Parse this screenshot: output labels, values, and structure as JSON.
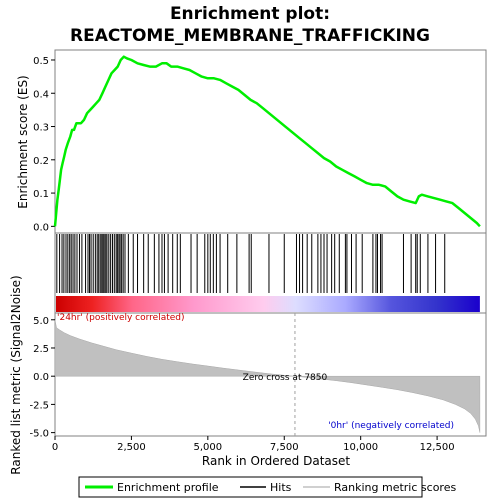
{
  "chart_data": [
    {
      "type": "line",
      "title_line1": "Enrichment plot:",
      "title_line2": "REACTOME_MEMBRANE_TRAFFICKING",
      "ylabel": "Enrichment score (ES)",
      "ylim": [
        -0.02,
        0.53
      ],
      "yticks": [
        "0.0",
        "0.1",
        "0.2",
        "0.3",
        "0.4",
        "0.5"
      ],
      "ytick_values": [
        0.0,
        0.1,
        0.2,
        0.3,
        0.4,
        0.5
      ],
      "xlim": [
        0,
        14100
      ],
      "series": [
        {
          "name": "Enrichment profile",
          "color": "#00ee00",
          "x": [
            0,
            40,
            80,
            120,
            160,
            200,
            250,
            300,
            350,
            420,
            500,
            560,
            620,
            700,
            780,
            850,
            950,
            1050,
            1150,
            1250,
            1350,
            1450,
            1550,
            1650,
            1750,
            1850,
            1950,
            2050,
            2150,
            2250,
            2350,
            2500,
            2700,
            2900,
            3100,
            3300,
            3500,
            3650,
            3800,
            4000,
            4200,
            4400,
            4600,
            4800,
            5000,
            5200,
            5400,
            5600,
            5800,
            6000,
            6200,
            6400,
            6600,
            6800,
            7000,
            7200,
            7400,
            7600,
            7800,
            8000,
            8200,
            8400,
            8600,
            8800,
            9000,
            9200,
            9400,
            9600,
            9800,
            10000,
            10200,
            10400,
            10600,
            10800,
            11000,
            11200,
            11400,
            11600,
            11800,
            11900,
            12000,
            12200,
            12400,
            12600,
            12800,
            13000,
            13200,
            13400,
            13600,
            13800,
            13900
          ],
          "y": [
            0.0,
            0.04,
            0.08,
            0.11,
            0.14,
            0.17,
            0.19,
            0.21,
            0.23,
            0.25,
            0.27,
            0.29,
            0.29,
            0.31,
            0.31,
            0.31,
            0.32,
            0.34,
            0.35,
            0.36,
            0.37,
            0.38,
            0.4,
            0.42,
            0.44,
            0.46,
            0.47,
            0.48,
            0.5,
            0.51,
            0.505,
            0.5,
            0.49,
            0.485,
            0.48,
            0.48,
            0.49,
            0.49,
            0.48,
            0.48,
            0.475,
            0.47,
            0.46,
            0.45,
            0.445,
            0.445,
            0.44,
            0.43,
            0.42,
            0.41,
            0.395,
            0.38,
            0.37,
            0.355,
            0.34,
            0.325,
            0.31,
            0.295,
            0.28,
            0.265,
            0.25,
            0.235,
            0.22,
            0.205,
            0.195,
            0.18,
            0.17,
            0.16,
            0.15,
            0.14,
            0.13,
            0.125,
            0.125,
            0.12,
            0.105,
            0.09,
            0.08,
            0.075,
            0.07,
            0.09,
            0.095,
            0.09,
            0.085,
            0.08,
            0.075,
            0.07,
            0.055,
            0.04,
            0.025,
            0.01,
            0.0
          ]
        }
      ]
    },
    {
      "type": "hits",
      "hits_x": [
        60,
        150,
        230,
        290,
        360,
        420,
        480,
        530,
        590,
        650,
        720,
        800,
        880,
        1000,
        1080,
        1130,
        1180,
        1250,
        1320,
        1380,
        1430,
        1480,
        1530,
        1570,
        1610,
        1660,
        1700,
        1760,
        1820,
        1880,
        1940,
        2000,
        2040,
        2090,
        2130,
        2180,
        2230,
        2290,
        2400,
        2560,
        2700,
        2900,
        3050,
        3250,
        3400,
        3500,
        3580,
        3700,
        3850,
        4000,
        4100,
        4450,
        4650,
        4900,
        5000,
        5080,
        5180,
        5280,
        5400,
        5650,
        5950,
        6350,
        6420,
        7000,
        7500,
        7900,
        8000,
        8100,
        8250,
        8400,
        8600,
        8700,
        8800,
        8900,
        9050,
        9150,
        9300,
        9500,
        9550,
        9700,
        9850,
        10050,
        10400,
        10500,
        10550,
        10650,
        10700,
        11400,
        11650,
        11800,
        11850,
        11950,
        12200,
        12450,
        12750
      ],
      "ranked_bar_colors": [
        "#cc0000",
        "#ff99cc",
        "#ccccff",
        "#3333cc",
        "#1a00cc"
      ]
    },
    {
      "type": "area",
      "ylabel": "Ranked list metric (Signal2Noise)",
      "xlabel": "Rank in Ordered Dataset",
      "ylim": [
        -5.3,
        5.6
      ],
      "yticks": [
        "5.0",
        "2.5",
        "0.0",
        "-2.5",
        "-5.0"
      ],
      "ytick_values": [
        5.0,
        2.5,
        0.0,
        -2.5,
        -5.0
      ],
      "xticks": [
        "0",
        "2,500",
        "5,000",
        "7,500",
        "10,000",
        "12,500"
      ],
      "xtick_values": [
        0,
        2500,
        5000,
        7500,
        10000,
        12500
      ],
      "xlim": [
        0,
        14100
      ],
      "x": [
        0,
        50,
        150,
        300,
        500,
        800,
        1200,
        1600,
        2000,
        2500,
        3000,
        3500,
        4000,
        4500,
        5000,
        5500,
        6000,
        6500,
        7000,
        7500,
        7850,
        8200,
        8700,
        9200,
        9700,
        10200,
        10700,
        11200,
        11700,
        12200,
        12700,
        13100,
        13400,
        13600,
        13750,
        13850,
        13900
      ],
      "values": [
        5.0,
        4.3,
        4.1,
        3.85,
        3.6,
        3.3,
        2.95,
        2.65,
        2.35,
        2.05,
        1.75,
        1.5,
        1.28,
        1.08,
        0.9,
        0.72,
        0.55,
        0.38,
        0.22,
        0.08,
        0.0,
        -0.1,
        -0.25,
        -0.4,
        -0.58,
        -0.78,
        -0.98,
        -1.2,
        -1.45,
        -1.75,
        -2.1,
        -2.5,
        -2.9,
        -3.3,
        -3.8,
        -4.4,
        -5.0
      ],
      "zero_cross_label": "Zero cross at 7850",
      "zero_cross_x": 7850,
      "pos_label": "'24hr' (positively correlated)",
      "neg_label": "'0hr' (negatively correlated)",
      "pos_color": "#cc0000",
      "neg_color": "#0000cc",
      "fill_color": "#c0c0c0"
    }
  ],
  "legend": {
    "items": [
      {
        "label": "Enrichment profile",
        "color": "#00ee00"
      },
      {
        "label": "Hits",
        "color": "#000000"
      },
      {
        "label": "Ranking metric scores",
        "color": "#c0c0c0"
      }
    ]
  }
}
